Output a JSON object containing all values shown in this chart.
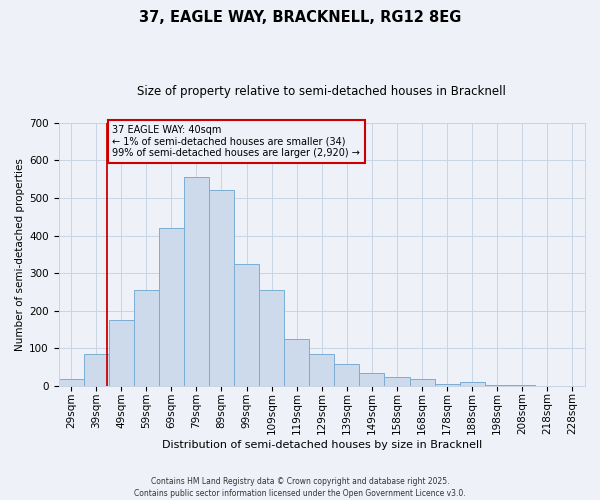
{
  "title": "37, EAGLE WAY, BRACKNELL, RG12 8EG",
  "subtitle": "Size of property relative to semi-detached houses in Bracknell",
  "xlabel": "Distribution of semi-detached houses by size in Bracknell",
  "ylabel": "Number of semi-detached properties",
  "categories": [
    "29sqm",
    "39sqm",
    "49sqm",
    "59sqm",
    "69sqm",
    "79sqm",
    "89sqm",
    "99sqm",
    "109sqm",
    "119sqm",
    "129sqm",
    "139sqm",
    "149sqm",
    "158sqm",
    "168sqm",
    "178sqm",
    "188sqm",
    "198sqm",
    "208sqm",
    "218sqm",
    "228sqm"
  ],
  "bar_values": [
    20,
    85,
    175,
    255,
    420,
    555,
    520,
    325,
    255,
    125,
    85,
    60,
    35,
    25,
    20,
    5,
    10,
    3,
    2,
    1,
    0
  ],
  "bar_color": "#ccdaec",
  "bar_edge_color": "#7aadd4",
  "grid_color": "#c8d4e4",
  "bg_color": "#eef2f8",
  "vline_color": "#cc0000",
  "vline_x_idx": 1,
  "annotation_text": "37 EAGLE WAY: 40sqm\n← 1% of semi-detached houses are smaller (34)\n99% of semi-detached houses are larger (2,920) →",
  "annotation_box_color": "#cc0000",
  "footer": "Contains HM Land Registry data © Crown copyright and database right 2025.\nContains public sector information licensed under the Open Government Licence v3.0.",
  "ylim": [
    0,
    700
  ],
  "yticks": [
    0,
    100,
    200,
    300,
    400,
    500,
    600,
    700
  ],
  "title_fontsize": 10.5,
  "subtitle_fontsize": 8.5,
  "ylabel_fontsize": 7.5,
  "xlabel_fontsize": 8,
  "tick_fontsize": 7.5,
  "annotation_fontsize": 7,
  "footer_fontsize": 5.5
}
